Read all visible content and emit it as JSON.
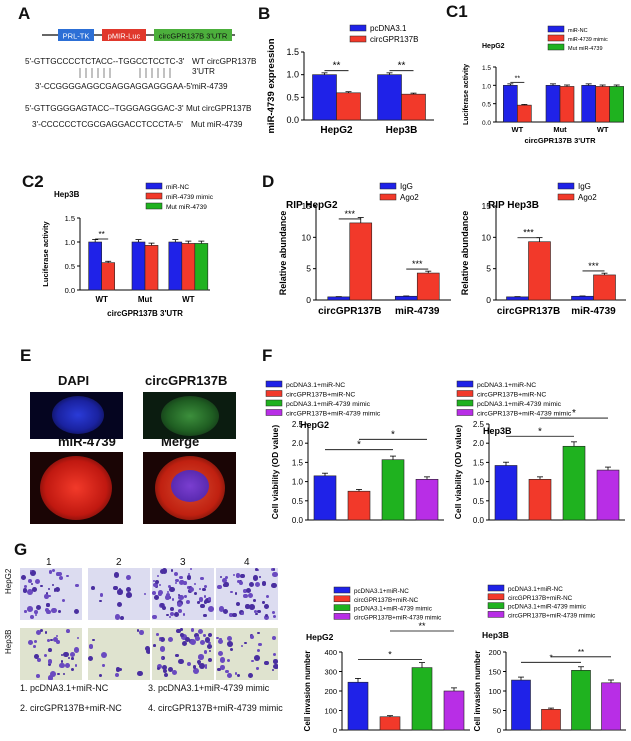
{
  "panels": {
    "A": "A",
    "B": "B",
    "C1": "C1",
    "C2": "C2",
    "D": "D",
    "E": "E",
    "F": "F",
    "G": "G"
  },
  "panelA": {
    "construct": [
      "PRL-TK",
      "pMIR-Luc",
      "circGPR137B 3'UTR"
    ],
    "wt_seq": "5'-GTTGCCCCTCTACC--TGGCCTCCTC-3'",
    "wt_label": "WT circGPR137B",
    "wt_label2": "3'UTR",
    "mir_seq": "3'-CCGGGGAGGCGAGGAGGAGGGAA-5'",
    "mir_label": "miR-4739",
    "mut_seq": "5'-GTTGGGGAGTACC--TGGGAGGGAC-3'",
    "mut_label": "Mut circGPR137B",
    "mutmir_seq": "3'-CCCCCCTCGCGAGGACCTCCCTA-5'",
    "mutmir_label": "Mut miR-4739"
  },
  "colors": {
    "blue": "#1f22e8",
    "red": "#f2392a",
    "green": "#1fb21f",
    "purple": "#b82ee6",
    "construct_blue": "#2c6fd6",
    "construct_red": "#e0382c",
    "construct_green": "#4caf3c"
  },
  "chart_data": [
    {
      "id": "B",
      "type": "bar",
      "ylabel": "miR-4739 expression",
      "ylim": [
        0,
        1.5
      ],
      "yticks": [
        "0.0",
        "0.5",
        "1.0",
        "1.5"
      ],
      "categories": [
        "HepG2",
        "Hep3B"
      ],
      "series": [
        {
          "name": "pcDNA3.1",
          "values": [
            1.0,
            1.0
          ],
          "color": "blue"
        },
        {
          "name": "circGPR137B",
          "values": [
            0.6,
            0.57
          ],
          "color": "red"
        }
      ],
      "annotations": [
        "**",
        "**"
      ],
      "legend": "top-right"
    },
    {
      "id": "C1",
      "type": "bar",
      "title": "HepG2",
      "ylabel": "Luciferase activity",
      "ylim": [
        0,
        1.5
      ],
      "yticks": [
        "0.0",
        "0.5",
        "1.0",
        "1.5"
      ],
      "categories": [
        "WT",
        "Mut",
        "WT"
      ],
      "xgroup_label": "circGPR137B  3'UTR",
      "series": [
        {
          "name": "miR-NC",
          "values": [
            1.0,
            1.0,
            1.0
          ],
          "color": "blue"
        },
        {
          "name": "miR-4739 mimic",
          "values": [
            0.46,
            0.97,
            0.97
          ],
          "color": "red"
        },
        {
          "name": "Mut miR-4739",
          "values": [
            null,
            null,
            0.97
          ],
          "color": "green"
        }
      ],
      "annotations": [
        "**"
      ],
      "legend": "top-right"
    },
    {
      "id": "C2",
      "type": "bar",
      "title": "Hep3B",
      "ylabel": "Luciferase activity",
      "ylim": [
        0,
        1.5
      ],
      "yticks": [
        "0.0",
        "0.5",
        "1.0",
        "1.5"
      ],
      "categories": [
        "WT",
        "Mut",
        "WT"
      ],
      "xgroup_label": "circGPR137B  3'UTR",
      "series": [
        {
          "name": "miR-NC",
          "values": [
            1.0,
            1.0,
            1.0
          ],
          "color": "blue"
        },
        {
          "name": "miR-4739 mimic",
          "values": [
            0.57,
            0.93,
            0.97
          ],
          "color": "red"
        },
        {
          "name": "Mut miR-4739",
          "values": [
            null,
            null,
            0.97
          ],
          "color": "green"
        }
      ],
      "annotations": [
        "**"
      ],
      "legend": "top-right"
    },
    {
      "id": "D1",
      "type": "bar",
      "title": "RIP   HepG2",
      "ylabel": "Relative abundance",
      "ylim": [
        0,
        15
      ],
      "yticks": [
        "0",
        "5",
        "10",
        "15"
      ],
      "categories": [
        "circGPR137B",
        "miR-4739"
      ],
      "series": [
        {
          "name": "IgG",
          "values": [
            0.5,
            0.6
          ],
          "color": "blue"
        },
        {
          "name": "Ago2",
          "values": [
            12.3,
            4.3
          ],
          "color": "red"
        }
      ],
      "annotations": [
        "***",
        "***"
      ],
      "legend": "top-right"
    },
    {
      "id": "D2",
      "type": "bar",
      "title": "RIP   Hep3B",
      "ylabel": "Relative abundance",
      "ylim": [
        0,
        15
      ],
      "yticks": [
        "0",
        "5",
        "10",
        "15"
      ],
      "categories": [
        "circGPR137B",
        "miR-4739"
      ],
      "series": [
        {
          "name": "IgG",
          "values": [
            0.5,
            0.6
          ],
          "color": "blue"
        },
        {
          "name": "Ago2",
          "values": [
            9.3,
            4.0
          ],
          "color": "red"
        }
      ],
      "annotations": [
        "***",
        "***"
      ],
      "legend": "top-right"
    },
    {
      "id": "F1",
      "type": "bar",
      "title": "HepG2",
      "ylabel": "Cell viability (OD value)",
      "ylim": [
        0,
        2.5
      ],
      "yticks": [
        "0.0",
        "0.5",
        "1.0",
        "1.5",
        "2.0",
        "2.5"
      ],
      "categories": [
        "pcDNA3.1+miR-NC",
        "circGPR137B+miR-NC",
        "pcDNA3.1+miR-4739 mimic",
        "circGPR137B+miR-4739 mimic"
      ],
      "values": [
        1.15,
        0.75,
        1.57,
        1.06
      ],
      "bar_colors": [
        "blue",
        "red",
        "green",
        "purple"
      ],
      "annotations": [
        "*",
        "*"
      ],
      "legend": "top"
    },
    {
      "id": "F2",
      "type": "bar",
      "title": "Hep3B",
      "ylabel": "Cell viability (OD value)",
      "ylim": [
        0,
        2.5
      ],
      "yticks": [
        "0.0",
        "0.5",
        "1.0",
        "1.5",
        "2.0",
        "2.5"
      ],
      "categories": [
        "pcDNA3.1+miR-NC",
        "circGPR137B+miR-NC",
        "pcDNA3.1+miR-4739 mimic",
        "circGPR137B+miR-4739 mimic"
      ],
      "values": [
        1.42,
        1.06,
        1.92,
        1.3
      ],
      "bar_colors": [
        "blue",
        "red",
        "green",
        "purple"
      ],
      "annotations": [
        "*",
        "*"
      ],
      "legend": "top"
    },
    {
      "id": "G1",
      "type": "bar",
      "title": "HepG2",
      "ylabel": "Cell invasion number",
      "ylim": [
        0,
        400
      ],
      "yticks": [
        "0",
        "100",
        "200",
        "300",
        "400"
      ],
      "categories": [
        "pcDNA3.1+miR-NC",
        "circGPR137B+miR-NC",
        "pcDNA3.1+miR-4739 mimic",
        "circGPR137B+miR-4739 mimic"
      ],
      "values": [
        245,
        68,
        320,
        200
      ],
      "bar_colors": [
        "blue",
        "red",
        "green",
        "purple"
      ],
      "annotations": [
        "*",
        "**"
      ],
      "legend": "top"
    },
    {
      "id": "G2",
      "type": "bar",
      "title": "Hep3B",
      "ylabel": "Cell invasion number",
      "ylim": [
        0,
        200
      ],
      "yticks": [
        "0",
        "50",
        "100",
        "150",
        "200"
      ],
      "categories": [
        "pcDNA3.1+miR-NC",
        "circGPR137B+miR-NC",
        "pcDNA3.1+miR-4739 mimic",
        "circGPR137B+miR-4739 mimic"
      ],
      "values": [
        128,
        53,
        153,
        121
      ],
      "bar_colors": [
        "blue",
        "red",
        "green",
        "purple"
      ],
      "annotations": [
        "*",
        "**"
      ],
      "legend": "top"
    }
  ],
  "panelE": {
    "labels": [
      "DAPI",
      "circGPR137B",
      "miR-4739",
      "Merge"
    ]
  },
  "panelG": {
    "col_labels": [
      "1",
      "2",
      "3",
      "4"
    ],
    "row_labels": [
      "HepG2",
      "Hep3B"
    ],
    "key": [
      "1. pcDNA3.1+miR-NC",
      "2. circGPR137B+miR-NC",
      "3. pcDNA3.1+miR-4739 mimic",
      "4. circGPR137B+miR-4739 mimic"
    ]
  }
}
